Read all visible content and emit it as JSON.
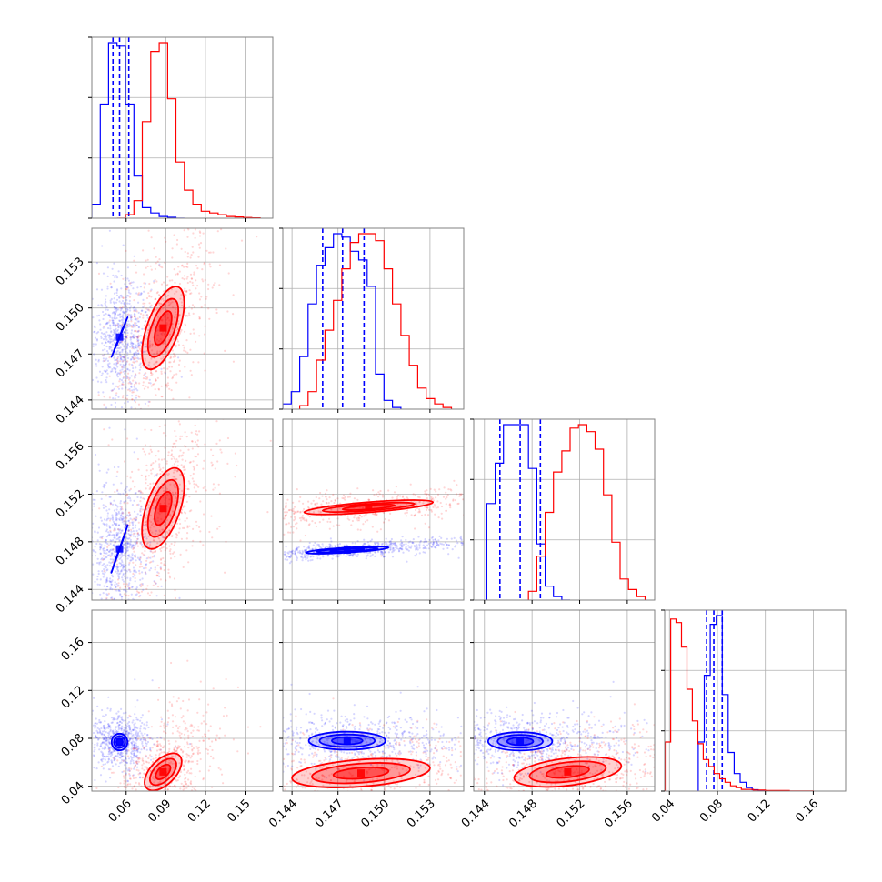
{
  "chart_data": {
    "type": "scatter",
    "subtype": "corner-plot",
    "grid": true,
    "colors": {
      "series_a": "#0000ff",
      "series_b": "#ff0000",
      "grid": "#b0b0b0",
      "frame": "#808080"
    },
    "parameters": [
      {
        "id": "p1",
        "range": [
          0.034,
          0.171
        ],
        "ticks": [
          0.06,
          0.09,
          0.12,
          0.15
        ],
        "tick_labels": [
          "0.06",
          "0.09",
          "0.12",
          "0.15"
        ]
      },
      {
        "id": "p2",
        "range": [
          0.1434,
          0.1552
        ],
        "ticks": [
          0.144,
          0.147,
          0.15,
          0.153
        ],
        "tick_labels": [
          "0.144",
          "0.147",
          "0.150",
          "0.153"
        ]
      },
      {
        "id": "p3",
        "range": [
          0.1431,
          0.1583
        ],
        "ticks": [
          0.144,
          0.148,
          0.152,
          0.156
        ],
        "tick_labels": [
          "0.144",
          "0.148",
          "0.152",
          "0.156"
        ]
      },
      {
        "id": "p4",
        "range": [
          0.036,
          0.187
        ],
        "ticks": [
          0.04,
          0.08,
          0.12,
          0.16
        ],
        "tick_labels": [
          "0.04",
          "0.08",
          "0.12",
          "0.16"
        ]
      }
    ],
    "series": [
      {
        "color": "#0000ff",
        "quantiles": [
          [
            0.05,
            0.055,
            0.062
          ],
          [
            0.146,
            0.1473,
            0.1487
          ],
          [
            0.1453,
            0.147,
            0.1487
          ],
          [
            0.071,
            0.077,
            0.084
          ]
        ],
        "marginal_bins": [
          {
            "edges": [
              0.034,
              0.0404,
              0.0467,
              0.0531,
              0.0595,
              0.0659,
              0.0722,
              0.0786,
              0.085,
              0.0914,
              0.0977,
              0.1041
            ],
            "values": [
              0.08,
              0.65,
              1.0,
              0.98,
              0.65,
              0.24,
              0.06,
              0.03,
              0.01,
              0.005,
              0.0
            ]
          },
          {
            "edges": [
              0.1434,
              0.14395,
              0.1445,
              0.14505,
              0.1456,
              0.14615,
              0.1467,
              0.14725,
              0.1478,
              0.14835,
              0.1489,
              0.14945,
              0.15,
              0.15055,
              0.1511
            ],
            "values": [
              0.03,
              0.1,
              0.3,
              0.6,
              0.82,
              0.92,
              1.0,
              0.98,
              0.9,
              0.85,
              0.7,
              0.2,
              0.05,
              0.01
            ]
          },
          {
            "edges": [
              0.1442,
              0.1449,
              0.1456,
              0.1463,
              0.147,
              0.1477,
              0.1484,
              0.1491,
              0.1498,
              0.1505,
              0.1512
            ],
            "values": [
              0.55,
              0.78,
              1.0,
              1.0,
              1.0,
              0.75,
              0.32,
              0.08,
              0.02,
              0.0
            ]
          },
          {
            "edges": [
              0.064,
              0.069,
              0.074,
              0.079,
              0.084,
              0.089,
              0.094,
              0.099,
              0.104,
              0.109,
              0.114,
              0.119,
              0.124
            ],
            "values": [
              0.28,
              0.66,
              0.95,
              1.0,
              0.55,
              0.22,
              0.1,
              0.05,
              0.02,
              0.008,
              0.004,
              0.0
            ]
          }
        ],
        "contours": {
          "1-0": [
            [
              0.055,
              0.1481,
              0.0061,
              0.0013,
              1.0
            ],
            [
              0.055,
              0.1481,
              0.0043,
              0.0009,
              1.0
            ],
            [
              0.055,
              0.1481,
              0.0025,
              0.0006,
              1.0
            ]
          ],
          "2-0": [
            [
              0.055,
              0.1474,
              0.0062,
              0.002,
              1.0
            ],
            [
              0.055,
              0.1474,
              0.0045,
              0.0014,
              1.0
            ],
            [
              0.055,
              0.1474,
              0.0026,
              0.0008,
              1.0
            ]
          ],
          "2-1": [
            [
              0.1476,
              0.1473,
              0.0027,
              0.0003,
              0.72
            ],
            [
              0.1476,
              0.1473,
              0.002,
              0.0002,
              0.72
            ],
            [
              0.1476,
              0.1473,
              0.0011,
              0.00012,
              0.72
            ]
          ],
          "3-0": [
            [
              0.055,
              0.077,
              0.006,
              0.007,
              0.0
            ],
            [
              0.055,
              0.077,
              0.0042,
              0.0048,
              0.0
            ],
            [
              0.055,
              0.077,
              0.0024,
              0.0028,
              0.0
            ]
          ],
          "3-1": [
            [
              0.1476,
              0.078,
              0.0025,
              0.0075,
              0.0
            ],
            [
              0.1476,
              0.078,
              0.0018,
              0.0052,
              0.0
            ],
            [
              0.1476,
              0.078,
              0.001,
              0.003,
              0.0
            ]
          ],
          "3-2": [
            [
              0.147,
              0.0775,
              0.0027,
              0.0077,
              0.0
            ],
            [
              0.147,
              0.0775,
              0.0019,
              0.0054,
              0.0
            ],
            [
              0.147,
              0.0775,
              0.0011,
              0.0032,
              0.0
            ]
          ]
        },
        "scatter_clouds": {
          "1-0": [
            0.055,
            0.1481,
            0.011,
            0.0019,
            0.0
          ],
          "2-0": [
            0.055,
            0.1474,
            0.011,
            0.0028,
            0.0
          ],
          "2-1": [
            0.1476,
            0.1473,
            0.0042,
            0.00045,
            0.72
          ],
          "3-0": [
            0.055,
            0.077,
            0.0105,
            0.0105,
            0.0
          ],
          "3-1": [
            0.1476,
            0.078,
            0.004,
            0.0105,
            0.0
          ],
          "3-2": [
            0.147,
            0.0775,
            0.0043,
            0.011,
            0.0
          ]
        }
      },
      {
        "color": "#ff0000",
        "quantiles": null,
        "marginal_bins": [
          {
            "edges": [
              0.0531,
              0.0595,
              0.0659,
              0.0722,
              0.0786,
              0.085,
              0.0914,
              0.0977,
              0.1041,
              0.1105,
              0.1168,
              0.1232,
              0.1296,
              0.1359,
              0.1423,
              0.1487,
              0.155,
              0.1614
            ],
            "values": [
              0.0,
              0.02,
              0.1,
              0.55,
              0.95,
              1.0,
              0.68,
              0.32,
              0.16,
              0.08,
              0.04,
              0.03,
              0.02,
              0.01,
              0.007,
              0.004,
              0.002
            ]
          },
          {
            "edges": [
              0.1445,
              0.14505,
              0.1456,
              0.14615,
              0.1467,
              0.14725,
              0.1478,
              0.14835,
              0.1489,
              0.14945,
              0.15,
              0.15055,
              0.1511,
              0.15165,
              0.1522,
              0.15275,
              0.1533,
              0.15385,
              0.1544
            ],
            "values": [
              0.02,
              0.1,
              0.28,
              0.45,
              0.62,
              0.8,
              0.95,
              1.0,
              1.0,
              0.96,
              0.8,
              0.6,
              0.42,
              0.25,
              0.12,
              0.06,
              0.03,
              0.01
            ]
          },
          {
            "edges": [
              0.1477,
              0.1484,
              0.1491,
              0.1498,
              0.1505,
              0.1512,
              0.1519,
              0.1526,
              0.1533,
              0.154,
              0.1547,
              0.1554,
              0.1561,
              0.1568,
              0.1575
            ],
            "values": [
              0.05,
              0.25,
              0.5,
              0.73,
              0.85,
              0.98,
              1.0,
              0.96,
              0.86,
              0.6,
              0.33,
              0.12,
              0.06,
              0.02
            ]
          },
          {
            "edges": [
              0.0364,
              0.041,
              0.0455,
              0.05,
              0.0546,
              0.0591,
              0.0637,
              0.0682,
              0.0728,
              0.0773,
              0.0819,
              0.0864,
              0.0909,
              0.0955,
              0.1,
              0.11,
              0.12,
              0.14,
              0.16
            ],
            "values": [
              0.28,
              0.98,
              0.96,
              0.82,
              0.58,
              0.4,
              0.27,
              0.18,
              0.14,
              0.1,
              0.07,
              0.05,
              0.03,
              0.02,
              0.01,
              0.006,
              0.003,
              0.001
            ]
          }
        ],
        "contours": {
          "1-0": [
            [
              0.088,
              0.1487,
              0.016,
              0.0027,
              0.6
            ],
            [
              0.088,
              0.1487,
              0.0115,
              0.0019,
              0.6
            ],
            [
              0.088,
              0.1487,
              0.0065,
              0.0011,
              0.6
            ]
          ],
          "2-0": [
            [
              0.088,
              0.1508,
              0.016,
              0.0034,
              0.55
            ],
            [
              0.088,
              0.1508,
              0.0115,
              0.0024,
              0.55
            ],
            [
              0.088,
              0.1508,
              0.0065,
              0.0014,
              0.55
            ]
          ],
          "2-1": [
            [
              0.149,
              0.1509,
              0.0042,
              0.0006,
              0.7
            ],
            [
              0.149,
              0.1509,
              0.003,
              0.0004,
              0.7
            ],
            [
              0.149,
              0.1509,
              0.0017,
              0.00024,
              0.7
            ]
          ],
          "3-0": [
            [
              0.088,
              0.052,
              0.014,
              0.0155,
              0.55
            ],
            [
              0.088,
              0.052,
              0.01,
              0.011,
              0.55
            ],
            [
              0.088,
              0.052,
              0.0056,
              0.0062,
              0.55
            ]
          ],
          "3-1": [
            [
              0.1485,
              0.051,
              0.0045,
              0.012,
              0.35
            ],
            [
              0.1485,
              0.051,
              0.0032,
              0.0085,
              0.35
            ],
            [
              0.1485,
              0.051,
              0.0018,
              0.0048,
              0.35
            ]
          ],
          "3-2": [
            [
              0.151,
              0.052,
              0.0045,
              0.0125,
              0.4
            ],
            [
              0.151,
              0.052,
              0.0032,
              0.0088,
              0.4
            ],
            [
              0.151,
              0.052,
              0.0018,
              0.005,
              0.4
            ]
          ]
        },
        "scatter_clouds": {
          "1-0": [
            0.088,
            0.1487,
            0.019,
            0.0032,
            0.55
          ],
          "2-0": [
            0.088,
            0.1508,
            0.019,
            0.0042,
            0.5
          ],
          "2-1": [
            0.149,
            0.1509,
            0.0062,
            0.0009,
            0.65
          ],
          "3-0": [
            0.088,
            0.052,
            0.019,
            0.025,
            0.55
          ],
          "3-1": [
            0.1485,
            0.051,
            0.0055,
            0.018,
            0.3
          ],
          "3-2": [
            0.151,
            0.052,
            0.0055,
            0.018,
            0.35
          ]
        }
      }
    ]
  }
}
